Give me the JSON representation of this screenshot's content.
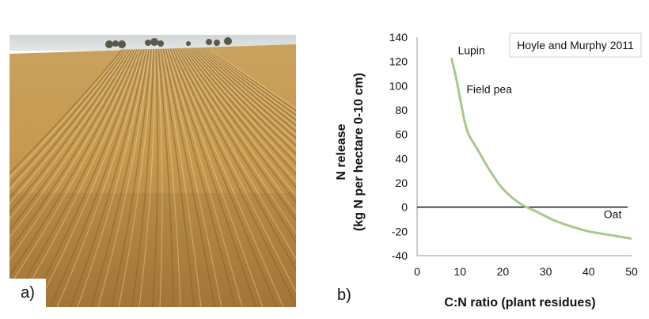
{
  "panel_a": {
    "label": "a)",
    "photo": "wheat stubble field"
  },
  "panel_b": {
    "label": "b)"
  },
  "chart_data": {
    "type": "line",
    "title": "",
    "source_note": "Hoyle and Murphy 2011",
    "xlabel": "C:N ratio (plant residues)",
    "ylabel_lines": [
      "N release",
      "(kg N per hectare 0-10 cm)"
    ],
    "xlim": [
      0,
      50
    ],
    "ylim": [
      -40,
      140
    ],
    "x_ticks": [
      0,
      10,
      20,
      30,
      40,
      50
    ],
    "y_ticks": [
      -40,
      -20,
      0,
      20,
      40,
      60,
      80,
      100,
      120,
      140
    ],
    "grid": false,
    "series": [
      {
        "color": "#a9c98b",
        "x": [
          8,
          9,
          10,
          11,
          12,
          14,
          17,
          20,
          24,
          28,
          32,
          36,
          40,
          45,
          50
        ],
        "y": [
          123,
          108,
          90,
          72,
          60,
          48,
          30,
          15,
          3,
          -4,
          -11,
          -16,
          -20,
          -23,
          -26
        ]
      }
    ],
    "reference_line": {
      "y": 0,
      "color": "#111111"
    },
    "annotations": [
      {
        "text": "Lupin",
        "x": 9.5,
        "y": 126
      },
      {
        "text": "Field pea",
        "x": 11.5,
        "y": 94
      },
      {
        "text": "Oat",
        "x": 43.5,
        "y": -9
      }
    ]
  }
}
